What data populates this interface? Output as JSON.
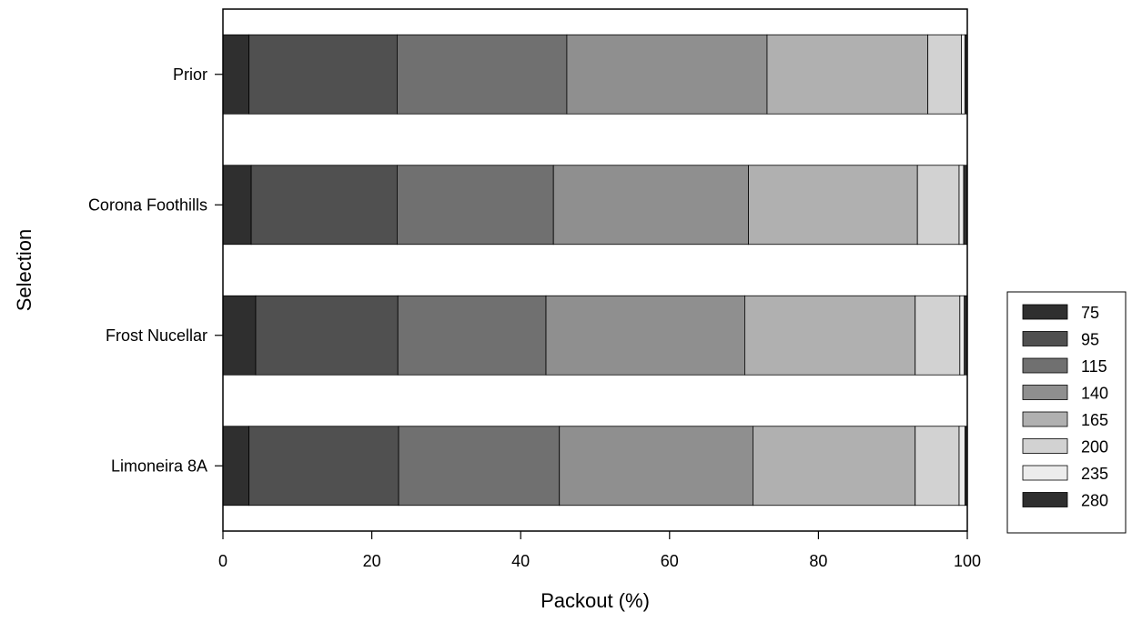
{
  "chart_data": {
    "type": "bar",
    "orientation": "horizontal",
    "stacked": true,
    "title": "",
    "xlabel": "Packout (%)",
    "ylabel": "Selection",
    "xlim": [
      0,
      100
    ],
    "xticks": [
      0,
      20,
      40,
      60,
      80,
      100
    ],
    "categories": [
      "Prior",
      "Corona Foothills",
      "Frost Nucellar",
      "Limoneira 8A"
    ],
    "grid": false,
    "legend_position": "right",
    "series": [
      {
        "name": "75",
        "color": "#2f2f2f",
        "values": [
          3.5,
          3.8,
          4.4,
          3.5
        ]
      },
      {
        "name": "95",
        "color": "#505050",
        "values": [
          19.9,
          19.6,
          19.1,
          20.1
        ]
      },
      {
        "name": "115",
        "color": "#707070",
        "values": [
          22.8,
          21.0,
          19.9,
          21.6
        ]
      },
      {
        "name": "140",
        "color": "#8f8f8f",
        "values": [
          26.9,
          26.2,
          26.7,
          26.0
        ]
      },
      {
        "name": "165",
        "color": "#b0b0b0",
        "values": [
          21.6,
          22.7,
          22.9,
          21.8
        ]
      },
      {
        "name": "200",
        "color": "#d2d2d2",
        "values": [
          4.5,
          5.6,
          6.0,
          5.9
        ]
      },
      {
        "name": "235",
        "color": "#ececec",
        "values": [
          0.5,
          0.6,
          0.6,
          0.8
        ]
      },
      {
        "name": "280",
        "color": "#2f2f2f",
        "values": [
          0.3,
          0.5,
          0.4,
          0.3
        ]
      }
    ]
  }
}
